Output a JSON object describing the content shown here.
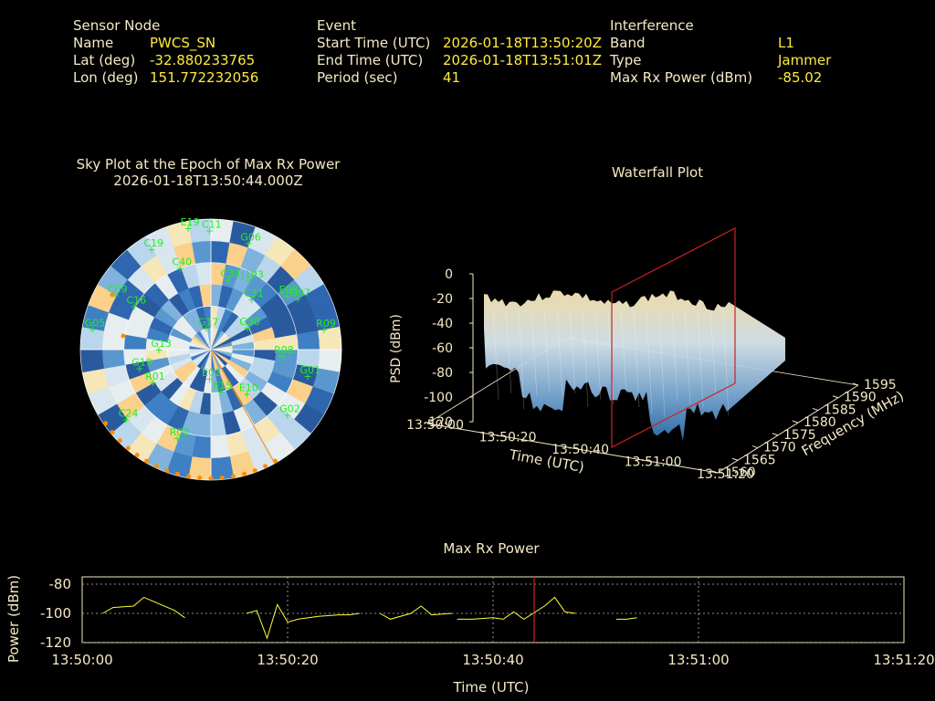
{
  "colors": {
    "background": "#000000",
    "label": "#f5e9c4",
    "value": "#ffeb3b",
    "sat_green": "#22ee22",
    "orange": "#ff8c00",
    "line_yellow": "#ffff33",
    "marker_red": "#cc2222"
  },
  "info": {
    "sensor": {
      "header": "Sensor Node",
      "rows": [
        {
          "label": "Name",
          "value": "PWCS_SN"
        },
        {
          "label": "Lat (deg)",
          "value": "-32.880233765"
        },
        {
          "label": "Lon (deg)",
          "value": "151.772232056"
        }
      ]
    },
    "event": {
      "header": "Event",
      "rows": [
        {
          "label": "Start Time (UTC)",
          "value": "2026-01-18T13:50:20Z"
        },
        {
          "label": "End Time (UTC)",
          "value": "2026-01-18T13:51:01Z"
        },
        {
          "label": "Period (sec)",
          "value": "41"
        }
      ]
    },
    "interference": {
      "header": "Interference",
      "rows": [
        {
          "label": "Band",
          "value": "L1"
        },
        {
          "label": "Type",
          "value": "Jammer"
        },
        {
          "label": "Max Rx Power (dBm)",
          "value": "-85.02"
        }
      ]
    }
  },
  "skyplot": {
    "title_line1": "Sky Plot at the Epoch of Max Rx Power",
    "title_line2": "2026-01-18T13:50:44.000Z",
    "satellites": [
      {
        "id": "C11",
        "az": 0,
        "el": 8
      },
      {
        "id": "G06",
        "az": 20,
        "el": 12
      },
      {
        "id": "E19",
        "az": 350,
        "el": 5
      },
      {
        "id": "C34",
        "az": 15,
        "el": 40
      },
      {
        "id": "J193",
        "az": 30,
        "el": 35
      },
      {
        "id": "C19",
        "az": 330,
        "el": 10
      },
      {
        "id": "C40",
        "az": 340,
        "el": 30
      },
      {
        "id": "C31",
        "az": 40,
        "el": 45
      },
      {
        "id": "G07",
        "az": 60,
        "el": 20
      },
      {
        "id": "E08",
        "az": 55,
        "el": 25
      },
      {
        "id": "G30",
        "az": 60,
        "el": 60
      },
      {
        "id": "G17",
        "az": 350,
        "el": 75
      },
      {
        "id": "R09",
        "az": 80,
        "el": 10
      },
      {
        "id": "R08",
        "az": 95,
        "el": 40
      },
      {
        "id": "G01",
        "az": 105,
        "el": 20
      },
      {
        "id": "G02",
        "az": 130,
        "el": 20
      },
      {
        "id": "E10",
        "az": 140,
        "el": 50
      },
      {
        "id": "C24",
        "az": 230,
        "el": 15
      },
      {
        "id": "R02",
        "az": 200,
        "el": 25
      },
      {
        "id": "C16",
        "az": 300,
        "el": 30
      },
      {
        "id": "G13",
        "az": 270,
        "el": 55
      },
      {
        "id": "R01",
        "az": 240,
        "el": 45
      },
      {
        "id": "E02",
        "az": 180,
        "el": 70
      },
      {
        "id": "G19",
        "az": 255,
        "el": 40
      },
      {
        "id": "E15",
        "az": 165,
        "el": 60
      },
      {
        "id": "C09",
        "az": 300,
        "el": 15
      },
      {
        "id": "G05",
        "az": 280,
        "el": 8
      }
    ]
  },
  "waterfall": {
    "title": "Waterfall Plot",
    "zlabel": "PSD (dBm)",
    "xlabel": "Time (UTC)",
    "ylabel": "Frequency (MHz)",
    "zticks": [
      "0",
      "-20",
      "-40",
      "-60",
      "-80",
      "-100",
      "-120"
    ],
    "xticks": [
      "13:50:00",
      "13:50:20",
      "13:50:40",
      "13:51:00",
      "13:51:20"
    ],
    "yticks": [
      "1560",
      "1565",
      "1570",
      "1575",
      "1580",
      "1585",
      "1590",
      "1595"
    ],
    "marker_time": "13:50:44"
  },
  "chart_data": {
    "type": "line",
    "title": "Max Rx Power",
    "xlabel": "Time (UTC)",
    "ylabel": "Power (dBm)",
    "x_ticks": [
      "13:50:00",
      "13:50:20",
      "13:50:40",
      "13:51:00",
      "13:51:20"
    ],
    "y_ticks": [
      -80,
      -100,
      -120
    ],
    "xlim_sec": [
      0,
      80
    ],
    "ylim": [
      -120,
      -75
    ],
    "marker_sec": 44,
    "segments": [
      [
        [
          2,
          -100
        ],
        [
          3,
          -96
        ],
        [
          5,
          -95
        ],
        [
          6,
          -89
        ],
        [
          7,
          -92
        ],
        [
          9,
          -98
        ],
        [
          10,
          -103
        ]
      ],
      [
        [
          16,
          -100
        ],
        [
          17,
          -98
        ],
        [
          18,
          -117
        ],
        [
          19,
          -94
        ],
        [
          20,
          -106
        ],
        [
          21,
          -104
        ],
        [
          23,
          -102
        ],
        [
          25,
          -101
        ],
        [
          26,
          -101
        ],
        [
          27,
          -100
        ]
      ],
      [
        [
          29,
          -100
        ],
        [
          30,
          -104
        ],
        [
          32,
          -100
        ],
        [
          33,
          -95
        ],
        [
          34,
          -101
        ],
        [
          36,
          -100
        ]
      ],
      [
        [
          36.5,
          -104
        ],
        [
          38,
          -104
        ],
        [
          40,
          -103
        ],
        [
          41,
          -104
        ],
        [
          42,
          -99
        ],
        [
          43,
          -104
        ],
        [
          45,
          -95
        ],
        [
          46,
          -89
        ],
        [
          47,
          -99
        ],
        [
          48,
          -100
        ]
      ],
      [
        [
          52,
          -104
        ],
        [
          53,
          -104
        ],
        [
          54,
          -103
        ]
      ]
    ]
  }
}
